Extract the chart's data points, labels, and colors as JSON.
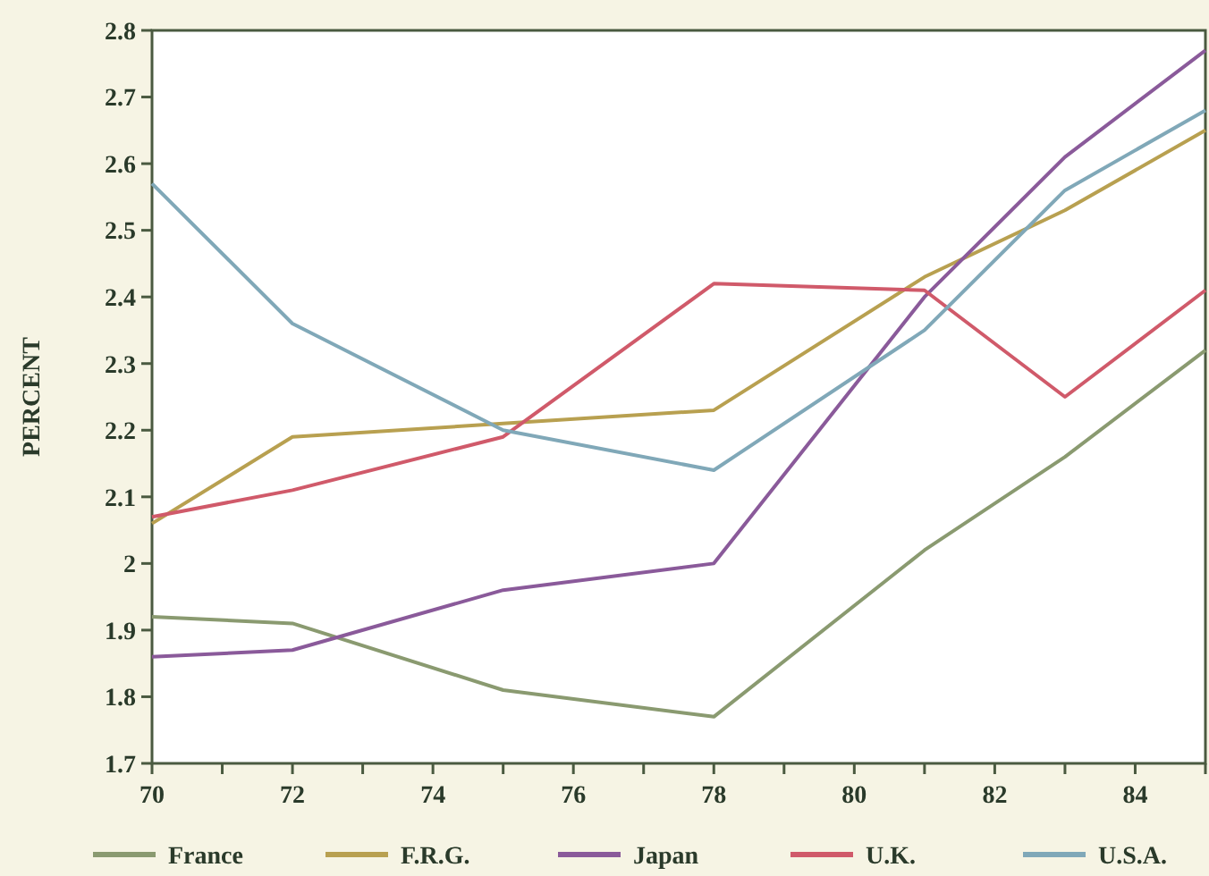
{
  "chart_data": {
    "type": "line",
    "ylabel": "PERCENT",
    "x": [
      70,
      72,
      75,
      78,
      81,
      83,
      85
    ],
    "xlim": [
      70,
      85
    ],
    "xticks": [
      70,
      {
        "value": 71,
        "label": null
      },
      72,
      {
        "value": 73,
        "label": null
      },
      74,
      {
        "value": 75,
        "label": null
      },
      76,
      {
        "value": 77,
        "label": null
      },
      78,
      {
        "value": 79,
        "label": null
      },
      80,
      {
        "value": 81,
        "label": null
      },
      82,
      {
        "value": 83,
        "label": null
      },
      84,
      {
        "value": 85,
        "label": null
      }
    ],
    "ylim": [
      1.7,
      2.8
    ],
    "yticks": [
      1.7,
      1.8,
      1.9,
      2,
      2.1,
      2.2,
      2.3,
      2.4,
      2.5,
      2.6,
      2.7,
      2.8
    ],
    "series": [
      {
        "name": "France",
        "color": "#8a9a70",
        "values": [
          1.92,
          1.91,
          1.81,
          1.77,
          2.02,
          2.16,
          2.32
        ]
      },
      {
        "name": "F.R.G.",
        "color": "#b8a050",
        "values": [
          2.06,
          2.19,
          2.21,
          2.23,
          2.43,
          2.53,
          2.65
        ]
      },
      {
        "name": "Japan",
        "color": "#8a5a9a",
        "values": [
          1.86,
          1.87,
          1.96,
          2.0,
          2.4,
          2.61,
          2.77
        ]
      },
      {
        "name": "U.K.",
        "color": "#d05a6a",
        "values": [
          2.07,
          2.11,
          2.19,
          2.42,
          2.41,
          2.25,
          2.41
        ]
      },
      {
        "name": "U.S.A.",
        "color": "#80a8b8",
        "values": [
          2.57,
          2.36,
          2.2,
          2.14,
          2.35,
          2.56,
          2.68
        ]
      }
    ],
    "grid": false,
    "legend": "bottom",
    "marker": "none",
    "line_style": "solid"
  }
}
